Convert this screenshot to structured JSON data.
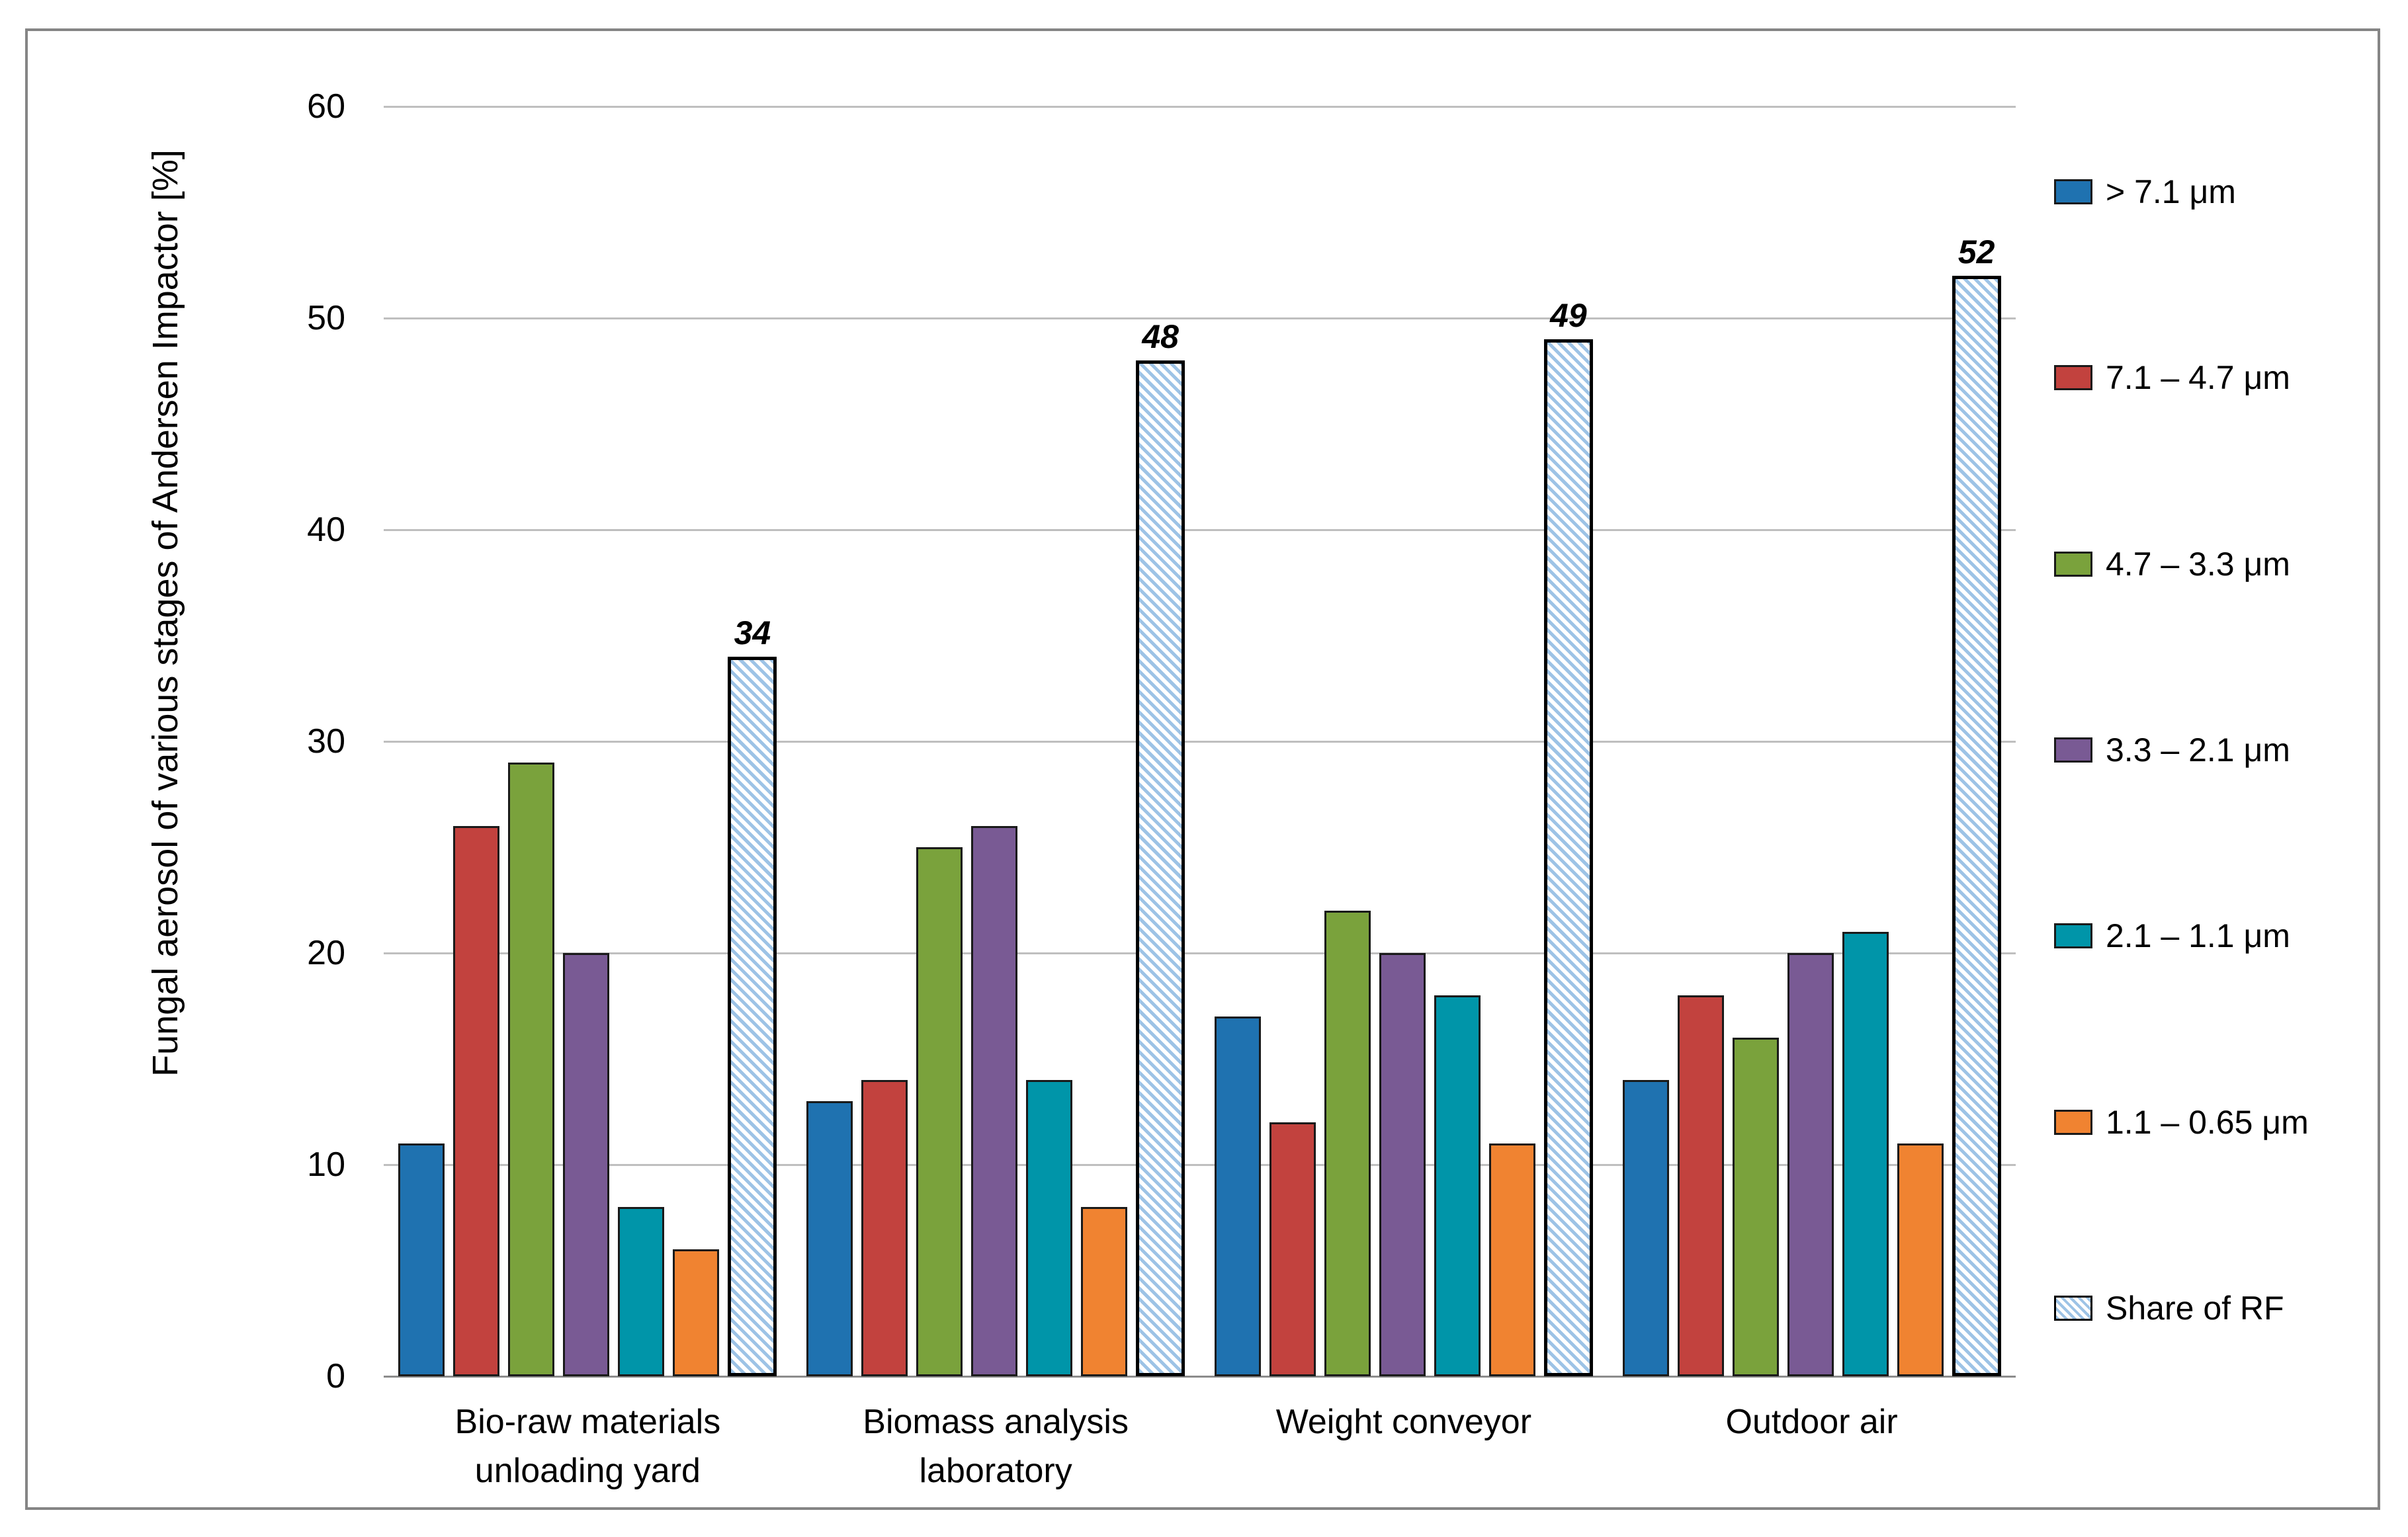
{
  "chart_data": {
    "type": "bar",
    "title": "",
    "ylabel": "Fungal aerosol of various stages of Andersen Impactor [%]",
    "xlabel": "",
    "ylim": [
      0,
      60
    ],
    "yticks": [
      0,
      10,
      20,
      30,
      40,
      50,
      60
    ],
    "grid": "horizontal",
    "legend_position": "right",
    "categories": [
      "Bio-raw materials\nunloading yard",
      "Biomass analysis\nlaboratory",
      "Weight conveyor",
      "Outdoor air"
    ],
    "series": [
      {
        "name": "> 7.1 μm",
        "color": "#1f72b0",
        "pattern": "solid",
        "values": [
          11,
          13,
          17,
          14
        ]
      },
      {
        "name": "7.1 – 4.7 μm",
        "color": "#c2423e",
        "pattern": "solid",
        "values": [
          26,
          14,
          12,
          18
        ]
      },
      {
        "name": "4.7 – 3.3 μm",
        "color": "#7aa23c",
        "pattern": "solid",
        "values": [
          29,
          25,
          22,
          16
        ]
      },
      {
        "name": "3.3 – 2.1 μm",
        "color": "#795a94",
        "pattern": "solid",
        "values": [
          20,
          26,
          20,
          20
        ]
      },
      {
        "name": "2.1 – 1.1  μm",
        "color": "#0095a9",
        "pattern": "solid",
        "values": [
          8,
          14,
          18,
          21
        ]
      },
      {
        "name": "1.1 – 0.65  μm",
        "color": "#f08331",
        "pattern": "solid",
        "values": [
          6,
          8,
          11,
          11
        ]
      },
      {
        "name": "Share of RF",
        "color": "#9dc3e6",
        "pattern": "hatched",
        "values": [
          34,
          48,
          49,
          52
        ],
        "data_labels": true
      }
    ],
    "colors": {
      "gridline": "#bfbfbf",
      "axis_line": "#8c8c8c",
      "frame_border": "#858585",
      "bar_outline": "#1a1a1a",
      "hatch_stripe": "#9dc3e6",
      "text": "#000000"
    }
  }
}
